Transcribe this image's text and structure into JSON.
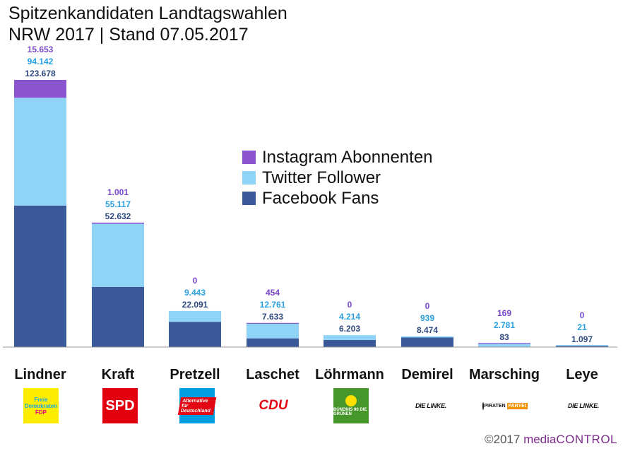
{
  "title": {
    "line1": "Spitzenkandidaten Landtagswahlen",
    "line2": "NRW 2017 | Stand 07.05.2017"
  },
  "colors": {
    "instagram": "#8b55cf",
    "twitter": "#8fd3f7",
    "facebook": "#3b5998",
    "instagram_text": "#7a48c8",
    "twitter_text": "#2aa0e0",
    "facebook_text": "#2f4a80"
  },
  "legend": [
    {
      "label": "Instagram Abonnenten",
      "color": "#8b55cf"
    },
    {
      "label": "Twitter Follower",
      "color": "#8fd3f7"
    },
    {
      "label": "Facebook Fans",
      "color": "#3b5998"
    }
  ],
  "chart_data": {
    "type": "bar",
    "stacked": true,
    "categories": [
      "Lindner",
      "Kraft",
      "Pretzell",
      "Laschet",
      "Löhrmann",
      "Demirel",
      "Marsching",
      "Leye"
    ],
    "series": [
      {
        "name": "Facebook Fans",
        "values": [
          123678,
          52632,
          22091,
          7633,
          6203,
          8474,
          83,
          1097
        ],
        "labels": [
          "123.678",
          "52.632",
          "22.091",
          "7.633",
          "6.203",
          "8.474",
          "83",
          "1.097"
        ]
      },
      {
        "name": "Twitter Follower",
        "values": [
          94142,
          55117,
          9443,
          12761,
          4214,
          939,
          2781,
          21
        ],
        "labels": [
          "94.142",
          "55.117",
          "9.443",
          "12.761",
          "4.214",
          "939",
          "2.781",
          "21"
        ]
      },
      {
        "name": "Instagram Abonnenten",
        "values": [
          15653,
          1001,
          0,
          454,
          0,
          0,
          169,
          0
        ],
        "labels": [
          "15.653",
          "1.001",
          "0",
          "454",
          "0",
          "0",
          "169",
          "0"
        ]
      }
    ],
    "ylim": [
      0,
      240000
    ],
    "grid": false,
    "legend_position": "center-right"
  },
  "logos": [
    {
      "party": "fdp",
      "text1": "Freie",
      "text2": "Demokraten",
      "text3": "FDP"
    },
    {
      "party": "spd",
      "text": "SPD"
    },
    {
      "party": "afd",
      "text": "Alternative für Deutschland"
    },
    {
      "party": "cdu",
      "text": "CDU"
    },
    {
      "party": "gruene",
      "text": "BÜNDNIS 90 DIE GRÜNEN"
    },
    {
      "party": "linke",
      "text": "DIE LINKE."
    },
    {
      "party": "piraten",
      "text": "PIRATEN",
      "badge": "PARTEI"
    },
    {
      "party": "linke2",
      "text": "DIE LINKE."
    }
  ],
  "copyright": {
    "prefix": "©2017 ",
    "brand1": "media",
    "brand2": "CONTROL"
  }
}
